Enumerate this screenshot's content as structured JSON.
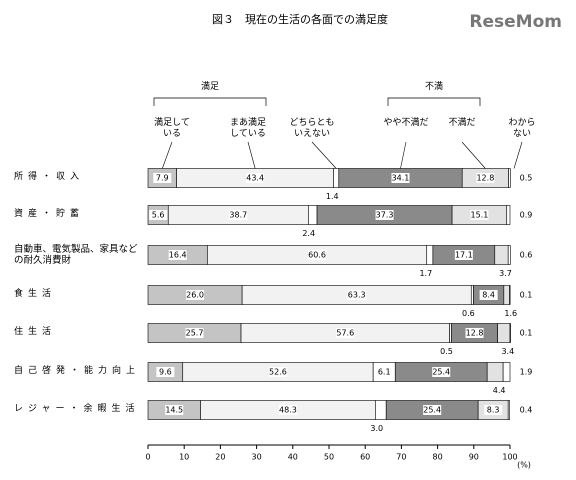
{
  "chart_data": {
    "type": "stacked-bar-horizontal",
    "title": "図３　現在の生活の各面での満足度",
    "logo": "ReseMom",
    "groups": [
      {
        "label": "満足",
        "series": [
          0,
          1
        ]
      },
      {
        "label": "不満",
        "series": [
          3,
          4
        ]
      }
    ],
    "categories": [
      "所得・収入",
      "資産・貯蓄",
      "自動車、電気製品、家具などの耐久消費財",
      "食生活",
      "住生活",
      "自己啓発・能力向上",
      "レジャー・余暇生活"
    ],
    "series": [
      {
        "name": "満足している",
        "color": "#c4c4c4",
        "values": [
          7.9,
          5.6,
          16.4,
          26.0,
          25.7,
          9.6,
          14.5
        ],
        "value_labels": [
          "7.9",
          "5.6",
          "16.4",
          "26.0",
          "25.7",
          "9.6",
          "14.5"
        ]
      },
      {
        "name": "まあ満足している",
        "color": "#f2f2f2",
        "values": [
          43.4,
          38.7,
          60.6,
          63.3,
          57.6,
          52.6,
          48.3
        ],
        "value_labels": [
          "43.4",
          "38.7",
          "60.6",
          "63.3",
          "57.6",
          "52.6",
          "48.3"
        ]
      },
      {
        "name": "どちらともいえない",
        "color": "#ffffff",
        "values": [
          1.4,
          2.4,
          1.7,
          0.6,
          0.5,
          6.1,
          3.0
        ],
        "value_labels": [
          "1.4",
          "2.4",
          "1.7",
          "0.6",
          "0.5",
          "6.1",
          "3.0"
        ]
      },
      {
        "name": "やや不満だ",
        "color": "#8a8a8a",
        "values": [
          34.1,
          37.3,
          17.1,
          8.4,
          12.8,
          25.4,
          25.4
        ],
        "value_labels": [
          "34.1",
          "37.3",
          "17.1",
          "8.4",
          "12.8",
          "25.4",
          "25.4"
        ]
      },
      {
        "name": "不満だ",
        "color": "#e2e2e2",
        "values": [
          12.8,
          15.1,
          3.7,
          1.6,
          3.4,
          4.4,
          8.3
        ],
        "value_labels": [
          "12.8",
          "15.1",
          "3.7",
          "1.6",
          "3.4",
          "4.4",
          "8.3"
        ]
      },
      {
        "name": "わからない",
        "color": "#ffffff",
        "values": [
          0.5,
          0.9,
          0.6,
          0.1,
          0.1,
          1.9,
          0.4
        ],
        "value_labels": [
          "0.5",
          "0.9",
          "0.6",
          "0.1",
          "0.1",
          "1.9",
          "0.4"
        ]
      }
    ],
    "xlim": [
      0,
      100
    ],
    "xticks": [
      0,
      10,
      20,
      30,
      40,
      50,
      60,
      70,
      80,
      90,
      100
    ],
    "x_unit": "(%)"
  }
}
